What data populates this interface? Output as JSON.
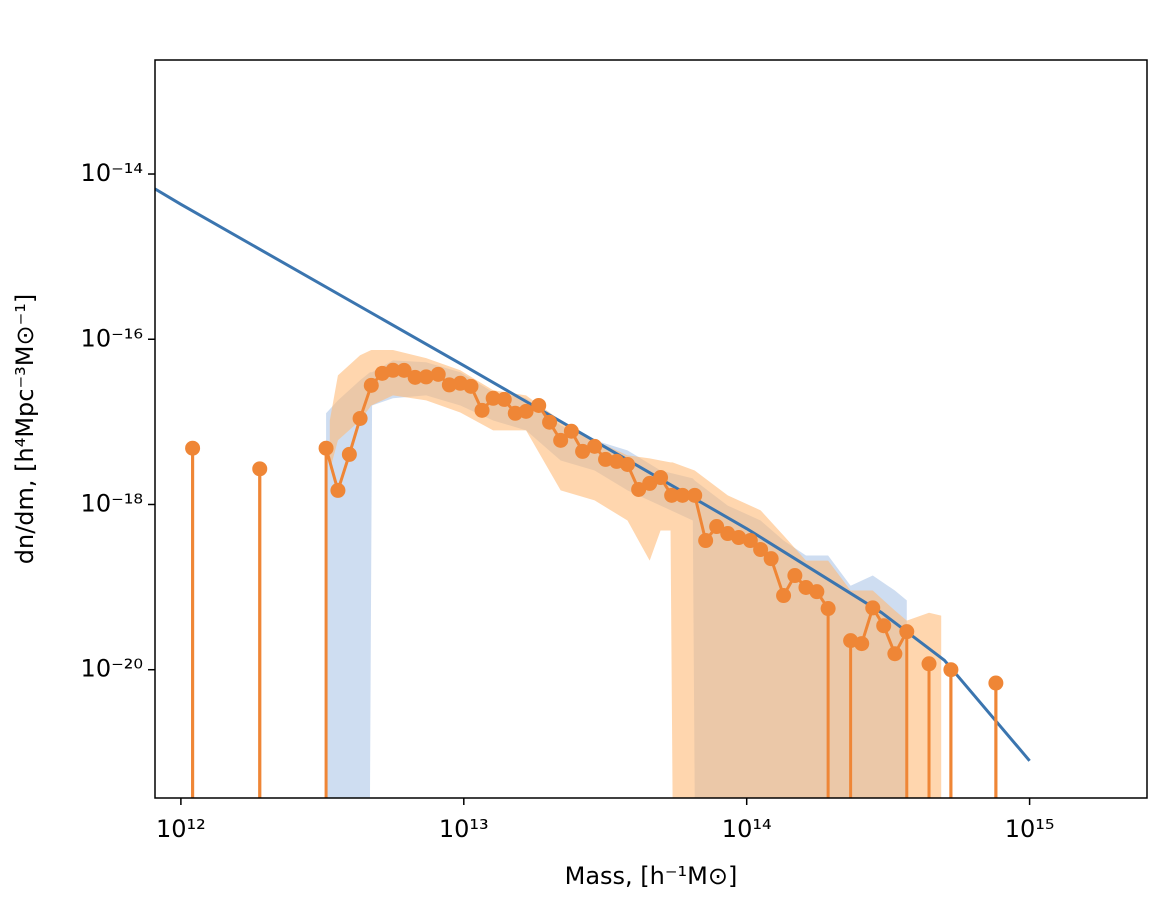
{
  "chart_data": {
    "type": "line",
    "xlabel": "Mass, [h⁻¹M⊙]",
    "ylabel": "dn/dm, [h⁴Mpc⁻³M⊙⁻¹]",
    "xscale": "log",
    "yscale": "log",
    "xlim": [
      810000000000.0,
      2600000000000000.0
    ],
    "ylim": [
      2.8e-22,
      2.4e-13
    ],
    "xticks": [
      {
        "value": 1000000000000.0,
        "label": "10¹²"
      },
      {
        "value": 10000000000000.0,
        "label": "10¹³"
      },
      {
        "value": 100000000000000.0,
        "label": "10¹⁴"
      },
      {
        "value": 1000000000000000.0,
        "label": "10¹⁵"
      }
    ],
    "yticks": [
      {
        "value": 1e-14,
        "label": "10⁻¹⁴"
      },
      {
        "value": 1e-16,
        "label": "10⁻¹⁶"
      },
      {
        "value": 1e-18,
        "label": "10⁻¹⁸"
      },
      {
        "value": 1e-20,
        "label": "10⁻²⁰"
      }
    ],
    "bands": [
      {
        "color": "#aec7e8",
        "x": [
          3260000000000.0,
          3590000000000.0,
          4300000000000.0,
          4660000000000.0,
          4740000000000.0,
          5620000000000.0,
          7360000000000.0,
          9720000000000.0,
          12700000000000.0,
          16600000000000.0,
          22000000000000.0,
          29000000000000.0,
          37900000000000.0,
          49600000000000.0,
          64500000000000.0,
          65500000000000.0,
          85700000000000.0,
          112000000000000.0,
          135000000000000.0,
          162000000000000.0,
          194000000000000.0,
          233000000000000.0,
          279000000000000.0,
          334000000000000.0,
          368000000000000.0
        ],
        "upper": [
          1.27e-17,
          1.82e-17,
          3.19e-17,
          3.98e-17,
          3.98e-17,
          5.56e-17,
          5.26e-17,
          3.98e-17,
          2.28e-17,
          1.93e-17,
          9.1e-18,
          6e-18,
          4.52e-18,
          2.58e-18,
          2.07e-18,
          1.95e-18,
          9.7e-19,
          6.4e-19,
          3.66e-19,
          2.41e-19,
          2.41e-19,
          1.04e-19,
          1.38e-19,
          9.1e-20,
          6.9e-20
        ],
        "lower": [
          0,
          0,
          0,
          0,
          1.58e-17,
          1.93e-17,
          2.09e-17,
          1.58e-17,
          1.04e-17,
          7.9e-18,
          3.41e-18,
          2.58e-18,
          1.48e-18,
          9.7e-19,
          6.4e-19,
          0,
          0,
          0,
          0,
          0,
          0,
          0,
          0,
          0,
          0
        ]
      },
      {
        "color": "#ffbb78",
        "x": [
          3360000000000.0,
          3590000000000.0,
          4300000000000.0,
          4710000000000.0,
          5620000000000.0,
          7360000000000.0,
          9720000000000.0,
          12700000000000.0,
          16600000000000.0,
          22000000000000.0,
          29000000000000.0,
          37900000000000.0,
          45400000000000.0,
          49600000000000.0,
          53800000000000.0,
          54700000000000.0,
          65500000000000.0,
          85700000000000.0,
          112000000000000.0,
          135000000000000.0,
          162000000000000.0,
          194000000000000.0,
          233000000000000.0,
          279000000000000.0,
          334000000000000.0,
          368000000000000.0,
          441000000000000.0,
          487000000000000.0
        ],
        "upper": [
          1.04e-17,
          3.66e-17,
          6.4e-17,
          7.4e-17,
          7.4e-17,
          5.9e-17,
          4.21e-17,
          2.41e-17,
          2.09e-17,
          1.04e-17,
          6e-18,
          3.93e-18,
          3.61e-18,
          3.41e-18,
          3.23e-18,
          3.23e-18,
          2.58e-18,
          1.29e-18,
          8.5e-19,
          4.21e-19,
          2.09e-19,
          2.09e-19,
          9.1e-20,
          9.1e-20,
          5.2e-20,
          3.93e-20,
          4.9e-20,
          4.52e-20
        ],
        "lower": [
          2.58e-18,
          6e-18,
          1.04e-17,
          1.58e-17,
          2.09e-17,
          1.82e-17,
          1.3e-17,
          7.9e-18,
          7.9e-18,
          1.48e-18,
          1.12e-18,
          6.4e-19,
          2.09e-19,
          4.84e-19,
          4.84e-19,
          0,
          0,
          0,
          0,
          0,
          0,
          0,
          0,
          0,
          0,
          0,
          0,
          0
        ]
      }
    ],
    "series": [
      {
        "color": "#3b75af",
        "markers": false,
        "x": [
          810000000000.0,
          1000000000000.0,
          10000000000000.0,
          100000000000000.0,
          300000000000000.0,
          500000000000000.0,
          1000000000000000.0
        ],
        "values": [
          6.6e-15,
          4.3e-15,
          4.8e-17,
          5.1e-19,
          4.9e-20,
          1.3e-20,
          7.9e-22
        ]
      },
      {
        "color": "#ef8636",
        "markers": true,
        "x": [
          1000000000000.0,
          1100000000000.0,
          1500000000000.0,
          1900000000000.0,
          2500000000000.0,
          3260000000000.0,
          3590000000000.0,
          3940000000000.0,
          4300000000000.0,
          4710000000000.0,
          5150000000000.0,
          5620000000000.0,
          6150000000000.0,
          6730000000000.0,
          7360000000000.0,
          8120000000000.0,
          8890000000000.0,
          9720000000000.0,
          10600000000000.0,
          11600000000000.0,
          12700000000000.0,
          13900000000000.0,
          15200000000000.0,
          16600000000000.0,
          18400000000000.0,
          20100000000000.0,
          22000000000000.0,
          24000000000000.0,
          26300000000000.0,
          29000000000000.0,
          31700000000000.0,
          34700000000000.0,
          37900000000000.0,
          41500000000000.0,
          45400000000000.0,
          49600000000000.0,
          54300000000000.0,
          59300000000000.0,
          65500000000000.0,
          71600000000000.0,
          78300000000000.0,
          85700000000000.0,
          93700000000000.0,
          103000000000000.0,
          112000000000000.0,
          122000000000000.0,
          135000000000000.0,
          148000000000000.0,
          162000000000000.0,
          177000000000000.0,
          194000000000000.0,
          213000000000000.0,
          233000000000000.0,
          255000000000000.0,
          279000000000000.0,
          305000000000000.0,
          334000000000000.0,
          368000000000000.0,
          402000000000000.0,
          441000000000000.0,
          484000000000000.0,
          527000000000000.0,
          630000000000000.0,
          760000000000000.0,
          830000000000000.0
        ],
        "values": [
          0,
          4.8e-18,
          0,
          2.7e-18,
          0,
          4.8e-18,
          1.48e-18,
          4.04e-18,
          1.1e-17,
          2.77e-17,
          3.87e-17,
          4.21e-17,
          4.2e-17,
          3.46e-17,
          3.5e-17,
          3.76e-17,
          2.8e-17,
          2.93e-17,
          2.69e-17,
          1.38e-17,
          1.93e-17,
          1.87e-17,
          1.27e-17,
          1.34e-17,
          1.58e-17,
          9.9e-18,
          5.97e-18,
          7.7e-18,
          4.39e-18,
          5.05e-18,
          3.51e-18,
          3.32e-18,
          3.05e-18,
          1.52e-18,
          1.8e-18,
          2.12e-18,
          1.29e-18,
          1.29e-18,
          1.29e-18,
          3.66e-19,
          5.41e-19,
          4.45e-19,
          3.98e-19,
          3.66e-19,
          2.85e-19,
          2.21e-19,
          7.9e-20,
          1.38e-19,
          9.9e-20,
          8.8e-20,
          5.5e-20,
          0,
          2.25e-20,
          2.07e-20,
          5.6e-20,
          3.41e-20,
          1.56e-20,
          2.89e-20,
          0,
          1.18e-20,
          0,
          1e-20,
          0,
          6.9e-21,
          0
        ]
      }
    ]
  }
}
